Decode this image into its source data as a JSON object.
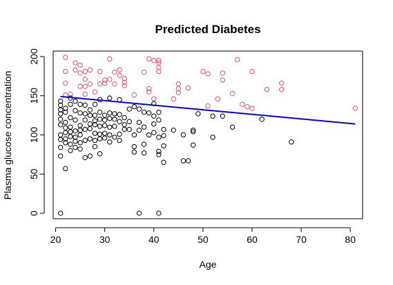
{
  "chart_data": {
    "type": "scatter",
    "title": "Predicted Diabetes",
    "xlabel": "Age",
    "ylabel": "Plasma glucose concentration",
    "xlim": [
      19.5,
      82.5
    ],
    "ylim": [
      -7,
      207
    ],
    "x_ticks": [
      "20",
      "30",
      "40",
      "50",
      "60",
      "70",
      "80"
    ],
    "y_ticks": [
      "0",
      "50",
      "100",
      "150",
      "200"
    ],
    "grid": false,
    "legend": "none",
    "colors": {
      "predicted_positive": "#DF536B",
      "predicted_negative": "#000000",
      "fit_line": "#0000EE",
      "axes": "#000000"
    },
    "fit_line": {
      "x": [
        21,
        81
      ],
      "y": [
        149,
        114
      ]
    },
    "series": [
      {
        "color": "#DF536B",
        "points": [
          [
            22,
            199
          ],
          [
            22,
            181
          ],
          [
            22,
            166
          ],
          [
            22,
            151
          ],
          [
            23,
            152
          ],
          [
            24,
            192
          ],
          [
            24,
            183
          ],
          [
            25,
            162
          ],
          [
            25,
            179
          ],
          [
            25,
            189
          ],
          [
            26,
            181
          ],
          [
            26,
            171
          ],
          [
            26,
            162
          ],
          [
            26,
            152
          ],
          [
            27,
            165
          ],
          [
            27,
            183
          ],
          [
            28,
            155
          ],
          [
            29,
            181
          ],
          [
            29,
            165
          ],
          [
            30,
            166
          ],
          [
            30,
            170
          ],
          [
            31,
            171
          ],
          [
            31,
            197
          ],
          [
            32,
            180
          ],
          [
            32,
            165
          ],
          [
            33,
            183
          ],
          [
            33,
            176
          ],
          [
            34,
            172
          ],
          [
            34,
            163
          ],
          [
            34,
            167
          ],
          [
            36,
            151
          ],
          [
            38,
            180
          ],
          [
            39,
            197
          ],
          [
            39,
            159
          ],
          [
            39,
            155
          ],
          [
            40,
            146
          ],
          [
            40,
            195
          ],
          [
            41,
            195
          ],
          [
            41,
            186
          ],
          [
            41,
            192
          ],
          [
            41,
            181
          ],
          [
            44,
            146
          ],
          [
            45,
            154
          ],
          [
            45,
            165
          ],
          [
            45,
            159
          ],
          [
            47,
            160
          ],
          [
            50,
            181
          ],
          [
            51,
            178
          ],
          [
            51,
            137
          ],
          [
            53,
            146
          ],
          [
            54,
            170
          ],
          [
            54,
            179
          ],
          [
            56,
            153
          ],
          [
            57,
            196
          ],
          [
            58,
            139
          ],
          [
            59,
            136
          ],
          [
            60,
            181
          ],
          [
            60,
            134
          ],
          [
            63,
            158
          ],
          [
            66,
            166
          ],
          [
            66,
            158
          ],
          [
            81,
            134
          ]
        ]
      },
      {
        "color": "#000000",
        "points": [
          [
            21,
            0
          ],
          [
            21,
            143
          ],
          [
            21,
            138
          ],
          [
            21,
            132
          ],
          [
            21,
            127
          ],
          [
            21,
            120
          ],
          [
            21,
            113
          ],
          [
            21,
            100
          ],
          [
            21,
            94
          ],
          [
            21,
            84
          ],
          [
            21,
            73
          ],
          [
            22,
            134
          ],
          [
            22,
            129
          ],
          [
            22,
            116
          ],
          [
            22,
            109
          ],
          [
            22,
            103
          ],
          [
            22,
            95
          ],
          [
            22,
            90
          ],
          [
            22,
            57
          ],
          [
            23,
            147
          ],
          [
            23,
            139
          ],
          [
            23,
            122
          ],
          [
            23,
            110
          ],
          [
            23,
            104
          ],
          [
            23,
            98
          ],
          [
            23,
            88
          ],
          [
            23,
            80
          ],
          [
            24,
            143
          ],
          [
            24,
            131
          ],
          [
            24,
            119
          ],
          [
            24,
            105
          ],
          [
            24,
            97
          ],
          [
            24,
            92
          ],
          [
            24,
            84
          ],
          [
            25,
            139
          ],
          [
            25,
            128
          ],
          [
            25,
            112
          ],
          [
            25,
            106
          ],
          [
            25,
            100
          ],
          [
            25,
            90
          ],
          [
            25,
            82
          ],
          [
            26,
            138
          ],
          [
            26,
            127
          ],
          [
            26,
            119
          ],
          [
            26,
            107
          ],
          [
            26,
            93
          ],
          [
            26,
            71
          ],
          [
            27,
            132
          ],
          [
            27,
            125
          ],
          [
            27,
            114
          ],
          [
            27,
            108
          ],
          [
            27,
            95
          ],
          [
            27,
            73
          ],
          [
            28,
            139
          ],
          [
            28,
            125
          ],
          [
            28,
            118
          ],
          [
            28,
            113
          ],
          [
            28,
            102
          ],
          [
            28,
            93
          ],
          [
            28,
            85
          ],
          [
            29,
            145
          ],
          [
            29,
            129
          ],
          [
            29,
            120
          ],
          [
            29,
            111
          ],
          [
            29,
            101
          ],
          [
            29,
            95
          ],
          [
            29,
            76
          ],
          [
            30,
            125
          ],
          [
            30,
            119
          ],
          [
            30,
            112
          ],
          [
            30,
            102
          ],
          [
            30,
            96
          ],
          [
            31,
            147
          ],
          [
            31,
            128
          ],
          [
            31,
            121
          ],
          [
            31,
            110
          ],
          [
            31,
            100
          ],
          [
            31,
            91
          ],
          [
            32,
            127
          ],
          [
            32,
            120
          ],
          [
            32,
            111
          ],
          [
            32,
            97
          ],
          [
            33,
            145
          ],
          [
            33,
            126
          ],
          [
            33,
            117
          ],
          [
            33,
            101
          ],
          [
            33,
            93
          ],
          [
            34,
            122
          ],
          [
            34,
            113
          ],
          [
            34,
            107
          ],
          [
            35,
            133
          ],
          [
            35,
            117
          ],
          [
            35,
            107
          ],
          [
            36,
            136
          ],
          [
            36,
            100
          ],
          [
            36,
            85
          ],
          [
            36,
            78
          ],
          [
            37,
            0
          ],
          [
            37,
            133
          ],
          [
            37,
            116
          ],
          [
            37,
            106
          ],
          [
            38,
            129
          ],
          [
            38,
            110
          ],
          [
            38,
            88
          ],
          [
            38,
            77
          ],
          [
            39,
            128
          ],
          [
            39,
            100
          ],
          [
            40,
            140
          ],
          [
            40,
            124
          ],
          [
            40,
            114
          ],
          [
            40,
            103
          ],
          [
            41,
            0
          ],
          [
            41,
            129
          ],
          [
            41,
            119
          ],
          [
            41,
            97
          ],
          [
            41,
            79
          ],
          [
            41,
            75
          ],
          [
            42,
            107
          ],
          [
            42,
            99
          ],
          [
            42,
            86
          ],
          [
            42,
            65
          ],
          [
            44,
            106
          ],
          [
            46,
            100
          ],
          [
            46,
            67
          ],
          [
            47,
            67
          ],
          [
            48,
            106
          ],
          [
            48,
            104
          ],
          [
            48,
            87
          ],
          [
            49,
            127
          ],
          [
            52,
            124
          ],
          [
            52,
            97
          ],
          [
            54,
            124
          ],
          [
            56,
            110
          ],
          [
            62,
            120
          ],
          [
            68,
            91
          ]
        ]
      }
    ]
  }
}
